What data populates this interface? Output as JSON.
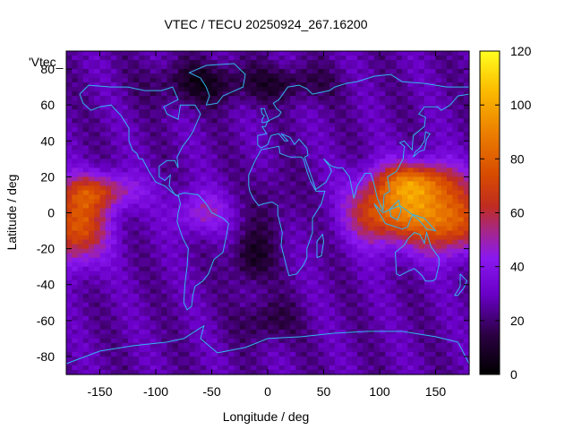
{
  "title": "VTEC / TECU 20250924_267.16200",
  "xlabel": "Longitude / deg",
  "ylabel": "Latitude / deg",
  "key_label": "'Vtec_",
  "x_ticks": [
    "-150",
    "-100",
    "-50",
    "0",
    "50",
    "100",
    "150"
  ],
  "y_ticks": [
    "80",
    "60",
    "40",
    "20",
    "0",
    "-20",
    "-40",
    "-60",
    "-80"
  ],
  "colorbar_ticks": [
    "120",
    "100",
    "80",
    "60",
    "40",
    "20",
    "0"
  ],
  "chart_data": {
    "type": "heatmap",
    "title": "VTEC / TECU 20250924_267.16200",
    "xlabel": "Longitude / deg",
    "ylabel": "Latitude / deg",
    "xlim": [
      -180,
      180
    ],
    "ylim": [
      -90,
      90
    ],
    "zlim": [
      0,
      120
    ],
    "x_tick_values": [
      -150,
      -100,
      -50,
      0,
      50,
      100,
      150
    ],
    "y_tick_values": [
      80,
      60,
      40,
      20,
      0,
      -20,
      -40,
      -60,
      -80
    ],
    "colorbar_tick_values": [
      120,
      100,
      80,
      60,
      40,
      20,
      0
    ],
    "palette": "black-purple-red-orange-yellow",
    "overlay": "coastlines",
    "features": [
      {
        "lon": 140,
        "lat": 0,
        "vtec": 105
      },
      {
        "lon": 130,
        "lat": 15,
        "vtec": 95
      },
      {
        "lon": -170,
        "lat": -12,
        "vtec": 90
      },
      {
        "lon": -160,
        "lat": 10,
        "vtec": 70
      },
      {
        "lon": -60,
        "lat": 0,
        "vtec": 55
      },
      {
        "lon": 90,
        "lat": 0,
        "vtec": 65
      },
      {
        "lon": 0,
        "lat": 60,
        "vtec": 25
      },
      {
        "lon": -60,
        "lat": 70,
        "vtec": 8
      },
      {
        "lon": -20,
        "lat": -25,
        "vtec": 8
      },
      {
        "lon": 0,
        "lat": -60,
        "vtec": 10
      },
      {
        "lon": 0,
        "lat": 0,
        "vtec": 25
      }
    ]
  }
}
